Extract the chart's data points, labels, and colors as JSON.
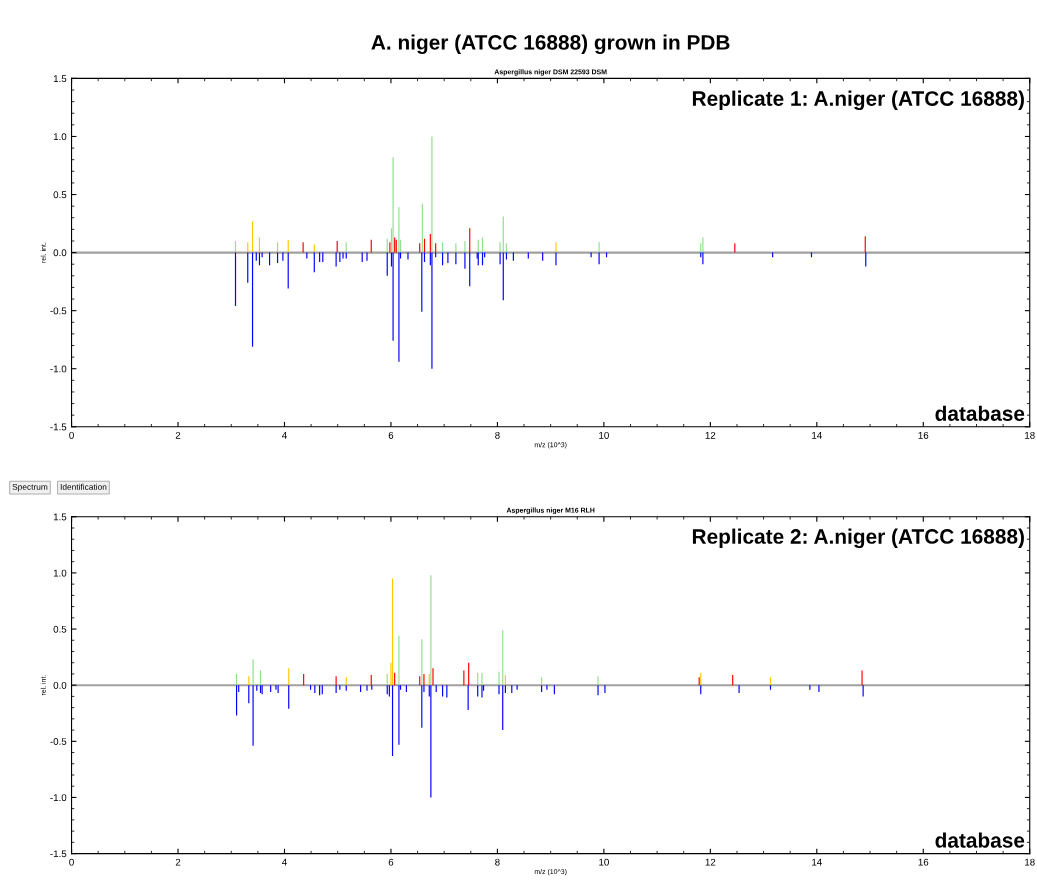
{
  "chart_data": [
    {
      "type": "bar",
      "title": "A. niger (ATCC 16888) grown in PDB",
      "subtitle": "Aspergillus niger DSM 22593 DSM",
      "xlabel": "m/z (10^3)",
      "ylabel": "rel. int.",
      "annotations": [
        "Replicate 1: A.niger (ATCC 16888)",
        "database"
      ],
      "xlim": [
        0,
        18
      ],
      "xticks": [
        0,
        2,
        4,
        6,
        8,
        10,
        12,
        14,
        16,
        18
      ],
      "ylim": [
        -1.5,
        1.5
      ],
      "yticks": [
        -1.5,
        {
          "value": -1,
          "label": "-1.0"
        },
        -0.5,
        {
          "value": 0,
          "label": "0.0"
        },
        0.5,
        {
          "value": 1,
          "label": "1.0"
        },
        1.5
      ],
      "grid": false,
      "ref_lines": [
        {
          "axis": "y",
          "value": 0,
          "color": "#a0a0a0"
        }
      ],
      "series": [
        {
          "color": "#8fe08f",
          "x": [
            3.08,
            3.87,
            5.16,
            5.93,
            6.01,
            6.04,
            6.15,
            6.18,
            6.59,
            6.77,
            6.97,
            7.22,
            7.39,
            7.64,
            7.72,
            8.05,
            8.11,
            8.17,
            9.91,
            11.82,
            11.86
          ],
          "values": [
            0.1,
            0.09,
            0.09,
            0.12,
            0.21,
            0.82,
            0.39,
            0.11,
            0.42,
            1.0,
            0.09,
            0.08,
            0.1,
            0.11,
            0.13,
            0.09,
            0.31,
            0.08,
            0.09,
            0.08,
            0.13
          ]
        },
        {
          "color": "#ffc800",
          "x": [
            3.31,
            3.4,
            3.53,
            4.07,
            4.56,
            9.1
          ],
          "values": [
            0.09,
            0.27,
            0.13,
            0.11,
            0.07,
            0.09
          ]
        },
        {
          "color": "#ff0000",
          "x": [
            4.35,
            4.99,
            5.63,
            5.98,
            6.07,
            6.1,
            6.54,
            6.63,
            6.74,
            6.84,
            7.48,
            12.46,
            14.91
          ],
          "values": [
            0.09,
            0.1,
            0.11,
            0.09,
            0.13,
            0.11,
            0.08,
            0.12,
            0.16,
            0.08,
            0.21,
            0.08,
            0.14
          ]
        },
        {
          "color": "#0000ff",
          "x": [
            3.08,
            3.31,
            3.4,
            3.47,
            3.53,
            3.58,
            3.72,
            3.87,
            3.97,
            4.07,
            4.42,
            4.56,
            4.66,
            4.72,
            4.97,
            5.04,
            5.1,
            5.16,
            5.46,
            5.55,
            5.93,
            6.01,
            6.04,
            6.15,
            6.18,
            6.32,
            6.58,
            6.63,
            6.74,
            6.77,
            6.84,
            6.97,
            7.07,
            7.22,
            7.39,
            7.48,
            7.62,
            7.64,
            7.72,
            7.76,
            8.05,
            8.11,
            8.17,
            8.3,
            8.58,
            8.85,
            9.1,
            9.76,
            9.91,
            10.05,
            11.82,
            11.86,
            13.17,
            13.9,
            14.92
          ],
          "values": [
            -0.46,
            -0.26,
            -0.81,
            -0.07,
            -0.11,
            -0.04,
            -0.11,
            -0.09,
            -0.07,
            -0.31,
            -0.05,
            -0.17,
            -0.08,
            -0.08,
            -0.12,
            -0.08,
            -0.05,
            -0.05,
            -0.08,
            -0.07,
            -0.2,
            -0.12,
            -0.76,
            -0.94,
            -0.05,
            -0.06,
            -0.51,
            -0.08,
            -0.11,
            -1.0,
            -0.04,
            -0.11,
            -0.09,
            -0.1,
            -0.14,
            -0.29,
            -0.05,
            -0.11,
            -0.11,
            -0.04,
            -0.1,
            -0.41,
            -0.06,
            -0.07,
            -0.05,
            -0.07,
            -0.11,
            -0.04,
            -0.1,
            -0.04,
            -0.04,
            -0.1,
            -0.04,
            -0.04,
            -0.12
          ]
        }
      ]
    },
    {
      "type": "bar",
      "subtitle": "Aspergillus niger M16 RLH",
      "xlabel": "m/z (10^3)",
      "ylabel": "rel. int.",
      "annotations": [
        "Replicate 2: A.niger (ATCC 16888)",
        "database",
        "Spectrum",
        "Identification"
      ],
      "xlim": [
        0,
        18
      ],
      "xticks": [
        0,
        2,
        4,
        6,
        8,
        10,
        12,
        14,
        16,
        18
      ],
      "ylim": [
        -1.5,
        1.5
      ],
      "yticks": [
        -1.5,
        {
          "value": -1,
          "label": "-1.0"
        },
        -0.5,
        {
          "value": 0,
          "label": "0.0"
        },
        0.5,
        {
          "value": 1,
          "label": "1.0"
        },
        1.5
      ],
      "grid": false,
      "ref_lines": [
        {
          "axis": "y",
          "value": 0,
          "color": "#a0a0a0"
        }
      ],
      "series": [
        {
          "color": "#8fe08f",
          "x": [
            3.1,
            3.41,
            3.55,
            5.93,
            6.15,
            6.58,
            6.75,
            7.63,
            7.71,
            8.03,
            8.1,
            8.83,
            9.89
          ],
          "values": [
            0.1,
            0.23,
            0.13,
            0.1,
            0.44,
            0.41,
            0.98,
            0.11,
            0.11,
            0.12,
            0.49,
            0.07,
            0.08
          ]
        },
        {
          "color": "#ffc800",
          "x": [
            3.33,
            4.08,
            5.16,
            6.0,
            6.03,
            6.72,
            8.15,
            11.82,
            13.13
          ],
          "values": [
            0.08,
            0.15,
            0.07,
            0.2,
            0.95,
            0.1,
            0.09,
            0.11,
            0.07
          ]
        },
        {
          "color": "#ff0000",
          "x": [
            4.36,
            4.97,
            5.63,
            6.07,
            6.54,
            6.62,
            6.79,
            7.37,
            7.46,
            11.79,
            12.42,
            14.85
          ],
          "values": [
            0.1,
            0.08,
            0.09,
            0.11,
            0.08,
            0.1,
            0.15,
            0.13,
            0.2,
            0.07,
            0.09,
            0.13
          ]
        },
        {
          "color": "#0000ff",
          "x": [
            3.1,
            3.14,
            3.33,
            3.41,
            3.48,
            3.55,
            3.58,
            3.74,
            3.84,
            3.88,
            4.08,
            4.49,
            4.57,
            4.66,
            4.71,
            4.97,
            5.04,
            5.16,
            5.43,
            5.55,
            5.64,
            5.93,
            5.97,
            6.03,
            6.15,
            6.18,
            6.29,
            6.58,
            6.62,
            6.72,
            6.75,
            6.85,
            6.97,
            7.05,
            7.45,
            7.63,
            7.71,
            7.74,
            8.03,
            8.1,
            8.15,
            8.27,
            8.37,
            8.83,
            8.93,
            9.07,
            9.89,
            10.02,
            11.82,
            12.54,
            13.13,
            13.87,
            14.04,
            14.87
          ],
          "values": [
            -0.27,
            -0.06,
            -0.16,
            -0.54,
            -0.05,
            -0.07,
            -0.08,
            -0.06,
            -0.04,
            -0.07,
            -0.21,
            -0.04,
            -0.07,
            -0.09,
            -0.08,
            -0.07,
            -0.04,
            -0.05,
            -0.06,
            -0.05,
            -0.04,
            -0.08,
            -0.1,
            -0.63,
            -0.53,
            -0.04,
            -0.06,
            -0.38,
            -0.06,
            -0.1,
            -1.0,
            -0.06,
            -0.1,
            -0.11,
            -0.22,
            -0.1,
            -0.11,
            -0.05,
            -0.08,
            -0.4,
            -0.07,
            -0.07,
            -0.04,
            -0.06,
            -0.04,
            -0.08,
            -0.09,
            -0.07,
            -0.08,
            -0.07,
            -0.04,
            -0.04,
            -0.06,
            -0.1
          ]
        }
      ]
    }
  ]
}
